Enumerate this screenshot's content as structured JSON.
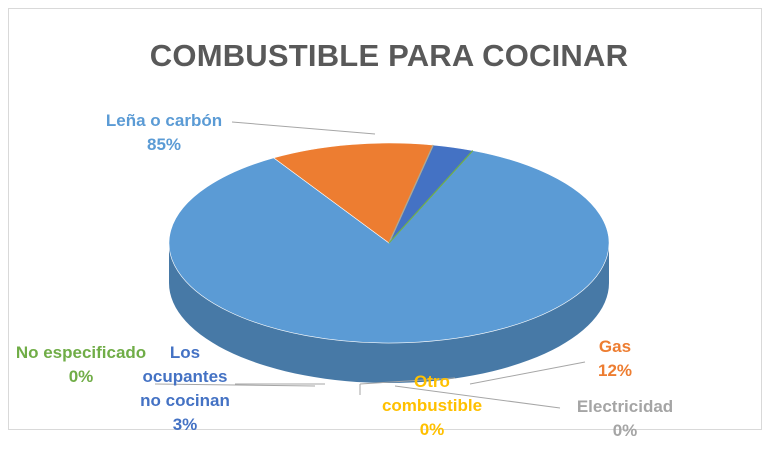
{
  "chart_data": {
    "type": "pie",
    "title": "COMBUSTIBLE PARA COCINAR",
    "slices": [
      {
        "label": "Leña o carbón",
        "value": 85,
        "value_label": "85%",
        "color": "#5B9BD5",
        "label_color": "#5B9BD5"
      },
      {
        "label": "Gas",
        "value": 12,
        "value_label": "12%",
        "color": "#ED7D31",
        "label_color": "#ED7D31"
      },
      {
        "label": "Otro combustible",
        "value": 0,
        "value_label": "0%",
        "color": "#FFC000",
        "label_color": "#FFC000"
      },
      {
        "label": "Electricidad",
        "value": 0,
        "value_label": "0%",
        "color": "#A5A5A5",
        "label_color": "#A5A5A5"
      },
      {
        "label": "Los ocupantes no cocinan",
        "value": 3,
        "value_label": "3%",
        "color": "#4472C4",
        "label_color": "#4472C4"
      },
      {
        "label": "No especificado",
        "value": 0,
        "value_label": "0%",
        "color": "#70AD47",
        "label_color": "#70AD47"
      }
    ],
    "style": "3d-pie"
  }
}
